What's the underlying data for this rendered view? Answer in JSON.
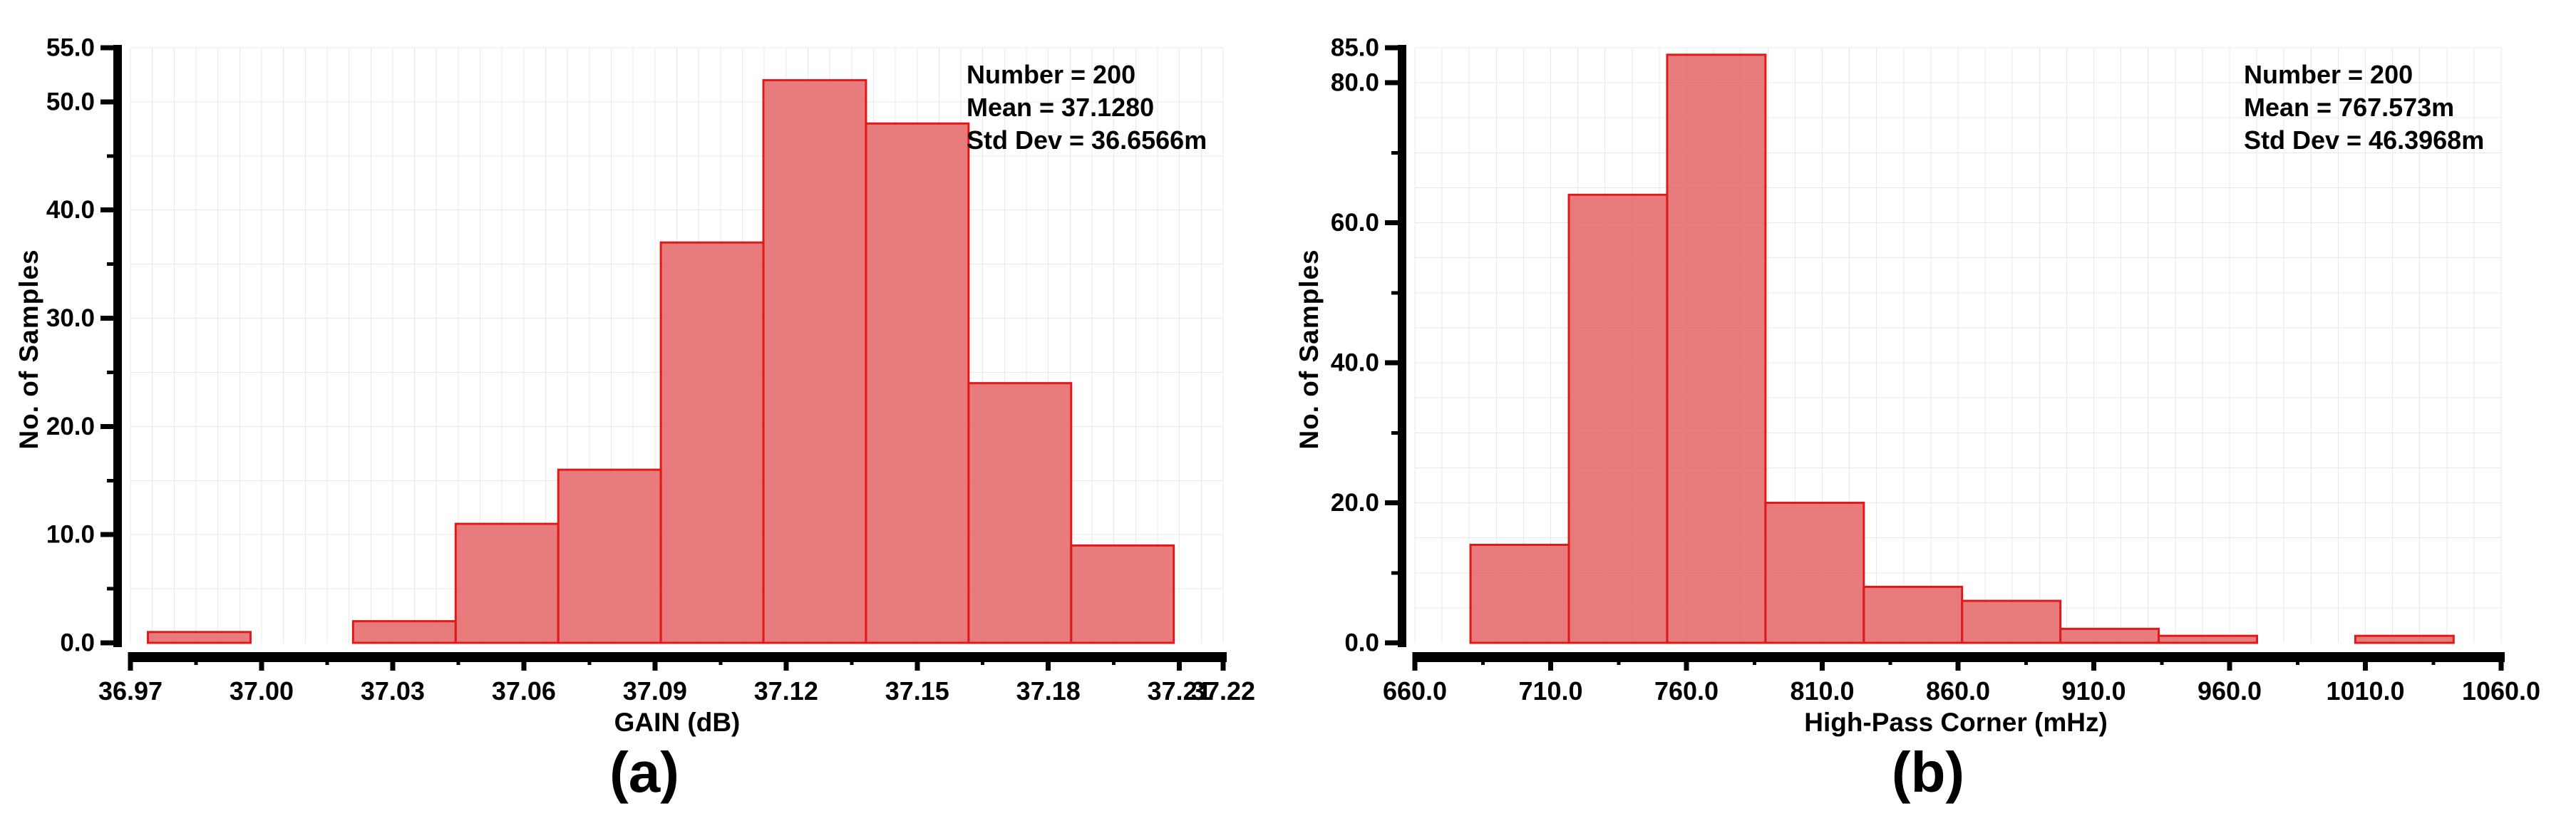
{
  "page": {
    "background": "#ffffff"
  },
  "colors": {
    "bar_fill": "#e35f5f",
    "bar_fill_opacity": 0.82,
    "bar_edge": "#e01a1a",
    "grid": "#e8e8e8",
    "axis": "#000000",
    "text": "#000000"
  },
  "chart_data": [
    {
      "type": "bar",
      "subtype": "histogram",
      "caption": "(a)",
      "xlabel": "GAIN (dB)",
      "ylabel": "No. of Samples",
      "annotation_lines": [
        "Number = 200",
        "Mean = 37.1280",
        "Std Dev = 36.6566m"
      ],
      "stats": {
        "number": 200,
        "mean": "37.1280",
        "std_dev": "36.6566m"
      },
      "xlim": [
        36.97,
        37.22
      ],
      "ylim": [
        0,
        55
      ],
      "x_major_ticks": [
        36.97,
        37.0,
        37.03,
        37.06,
        37.09,
        37.12,
        37.15,
        37.18,
        37.21,
        37.22
      ],
      "x_tick_labels": [
        "36.97",
        "37.00",
        "37.03",
        "37.06",
        "37.09",
        "37.12",
        "37.15",
        "37.18",
        "37.21",
        "37.22"
      ],
      "x_minor_ticks": [
        36.985,
        37.015,
        37.045,
        37.075,
        37.105,
        37.135,
        37.165,
        37.195
      ],
      "y_major_ticks": [
        0,
        10,
        20,
        30,
        40,
        50,
        55
      ],
      "y_tick_labels": [
        "0.0",
        "10.0",
        "20.0",
        "30.0",
        "40.0",
        "50.0",
        "55.0"
      ],
      "y_minor_ticks": [
        5,
        15,
        25,
        35,
        45
      ],
      "grid_x_step": 0.005,
      "grid_y_step": 5,
      "bins": {
        "start": 36.974,
        "width": 0.02347,
        "counts": [
          1,
          0,
          2,
          11,
          16,
          37,
          52,
          48,
          24,
          9
        ]
      },
      "legend": null,
      "grid": "on"
    },
    {
      "type": "bar",
      "subtype": "histogram",
      "caption": "(b)",
      "xlabel": "High-Pass Corner (mHz)",
      "ylabel": "No. of Samples",
      "annotation_lines": [
        "Number = 200",
        "Mean = 767.573m",
        "Std Dev = 46.3968m"
      ],
      "stats": {
        "number": 200,
        "mean": "767.573m",
        "std_dev": "46.3968m"
      },
      "xlim": [
        660,
        1060
      ],
      "ylim": [
        0,
        85
      ],
      "x_major_ticks": [
        660,
        710,
        760,
        810,
        860,
        910,
        960,
        1010,
        1060
      ],
      "x_tick_labels": [
        "660.0",
        "710.0",
        "760.0",
        "810.0",
        "860.0",
        "910.0",
        "960.0",
        "1010.0",
        "1060.0"
      ],
      "x_minor_ticks": [
        685,
        735,
        785,
        835,
        885,
        935,
        985,
        1035
      ],
      "y_major_ticks": [
        0,
        20,
        40,
        60,
        80,
        85
      ],
      "y_tick_labels": [
        "0.0",
        "20.0",
        "40.0",
        "60.0",
        "80.0",
        "85.0"
      ],
      "y_minor_ticks": [
        10,
        30,
        50,
        70
      ],
      "grid_x_step": 10,
      "grid_y_step": 5,
      "bins": {
        "start": 680.5,
        "width": 36.2,
        "counts": [
          14,
          64,
          84,
          20,
          8,
          6,
          2,
          1,
          0,
          1
        ]
      },
      "legend": null,
      "grid": "on"
    }
  ]
}
